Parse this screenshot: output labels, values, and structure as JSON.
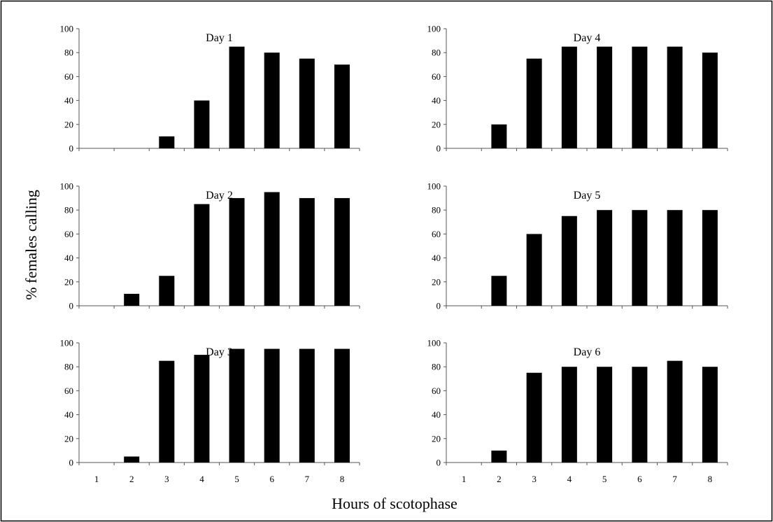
{
  "figure": {
    "ylabel": "% females calling",
    "xlabel": "Hours of scotophase"
  },
  "chart_data": [
    {
      "type": "bar",
      "title": "Day 1",
      "categories": [
        "1",
        "2",
        "3",
        "4",
        "5",
        "6",
        "7",
        "8"
      ],
      "values": [
        0,
        0,
        10,
        40,
        85,
        80,
        75,
        70
      ],
      "ylim": [
        0,
        100
      ],
      "yticks": [
        0,
        20,
        40,
        60,
        80,
        100
      ],
      "xlabel": "",
      "ylabel": ""
    },
    {
      "type": "bar",
      "title": "Day 4",
      "categories": [
        "1",
        "2",
        "3",
        "4",
        "5",
        "6",
        "7",
        "8"
      ],
      "values": [
        0,
        20,
        75,
        85,
        85,
        85,
        85,
        80
      ],
      "ylim": [
        0,
        100
      ],
      "yticks": [
        0,
        20,
        40,
        60,
        80,
        100
      ],
      "xlabel": "",
      "ylabel": ""
    },
    {
      "type": "bar",
      "title": "Day 2",
      "categories": [
        "1",
        "2",
        "3",
        "4",
        "5",
        "6",
        "7",
        "8"
      ],
      "values": [
        0,
        10,
        25,
        85,
        90,
        95,
        90,
        90
      ],
      "ylim": [
        0,
        100
      ],
      "yticks": [
        0,
        20,
        40,
        60,
        80,
        100
      ],
      "xlabel": "",
      "ylabel": ""
    },
    {
      "type": "bar",
      "title": "Day 5",
      "categories": [
        "1",
        "2",
        "3",
        "4",
        "5",
        "6",
        "7",
        "8"
      ],
      "values": [
        0,
        25,
        60,
        75,
        80,
        80,
        80,
        80
      ],
      "ylim": [
        0,
        100
      ],
      "yticks": [
        0,
        20,
        40,
        60,
        80,
        100
      ],
      "xlabel": "",
      "ylabel": ""
    },
    {
      "type": "bar",
      "title": "Day 3",
      "categories": [
        "1",
        "2",
        "3",
        "4",
        "5",
        "6",
        "7",
        "8"
      ],
      "values": [
        0,
        5,
        85,
        90,
        95,
        95,
        95,
        95
      ],
      "ylim": [
        0,
        100
      ],
      "yticks": [
        0,
        20,
        40,
        60,
        80,
        100
      ],
      "xlabel": "",
      "ylabel": ""
    },
    {
      "type": "bar",
      "title": "Day 6",
      "categories": [
        "1",
        "2",
        "3",
        "4",
        "5",
        "6",
        "7",
        "8"
      ],
      "values": [
        0,
        10,
        75,
        80,
        80,
        80,
        85,
        80
      ],
      "ylim": [
        0,
        100
      ],
      "yticks": [
        0,
        20,
        40,
        60,
        80,
        100
      ],
      "xlabel": "",
      "ylabel": ""
    }
  ]
}
